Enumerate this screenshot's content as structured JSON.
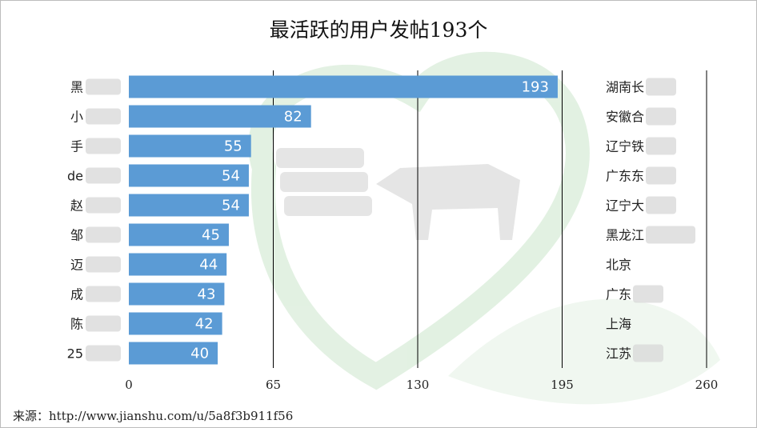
{
  "chart_data": {
    "type": "bar",
    "orientation": "horizontal",
    "title": "最活跃的用户发帖193个",
    "categories": [
      "黑",
      "小",
      "手",
      "de",
      "赵",
      "邹",
      "迈",
      "成",
      "陈",
      "25"
    ],
    "values": [
      193,
      82,
      55,
      54,
      54,
      45,
      44,
      43,
      42,
      40
    ],
    "regions": [
      "湖南长",
      "安徽合",
      "辽宁铁",
      "广东东",
      "辽宁大",
      "黑龙江",
      "北京",
      "广东",
      "上海",
      "江苏"
    ],
    "xlim": [
      0,
      260
    ],
    "xticks": [
      0,
      65,
      130,
      195,
      260
    ],
    "bar_color": "#5b9bd5",
    "grid": true,
    "source": "来源：http://www.jianshu.com/u/5a8f3b911f56"
  }
}
